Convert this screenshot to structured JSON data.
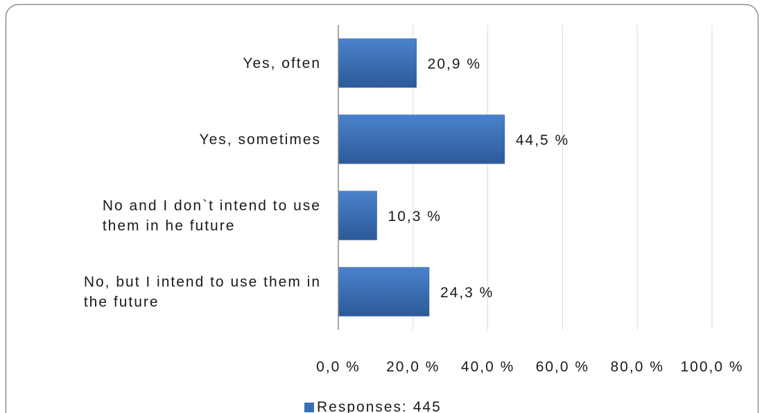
{
  "chart_data": {
    "type": "bar",
    "orientation": "horizontal",
    "categories": [
      "Yes, often",
      "Yes, sometimes",
      "No and I don`t intend to use them in he future",
      "No, but I intend to use them in the future"
    ],
    "category_lines": [
      [
        "Yes, often"
      ],
      [
        "Yes, sometimes"
      ],
      [
        "No and I don`t intend to use",
        "them in he future"
      ],
      [
        "No, but I intend to use them in",
        "the future"
      ]
    ],
    "series": [
      {
        "name": "Responses: 445",
        "values": [
          20.9,
          44.5,
          10.3,
          24.3
        ],
        "color": "#3a6fb8"
      }
    ],
    "data_labels": [
      "20,9 %",
      "44,5 %",
      "10,3 %",
      "24,3 %"
    ],
    "x_ticks": [
      0,
      20,
      40,
      60,
      80,
      100
    ],
    "x_tick_labels": [
      "0,0 %",
      "20,0 %",
      "40,0 %",
      "60,0 %",
      "80,0 %",
      "100,0 %"
    ],
    "xlim": [
      0,
      100
    ],
    "gridlines": true,
    "legend": {
      "position": "bottom",
      "label": "Responses: 445"
    },
    "colors": {
      "bar": "#3a6fb8",
      "bar_dark": "#2c5a99",
      "grid": "#cfdbe8",
      "axis": "#8c8c8c",
      "border": "#8c8c8c"
    }
  }
}
